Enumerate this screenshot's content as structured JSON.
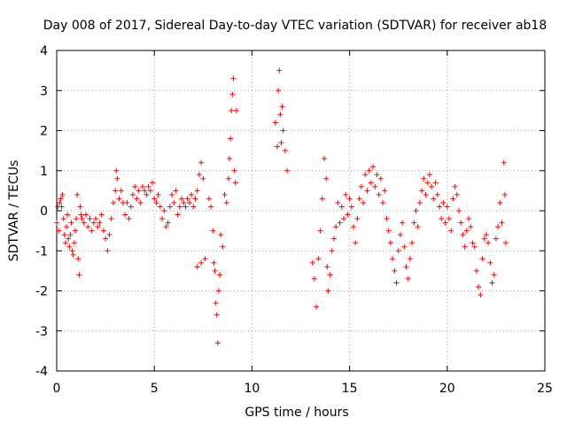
{
  "chart_data": {
    "type": "scatter",
    "title": "Day 008 of 2017, Sidereal Day-to-day VTEC variation (SDTVAR) for receiver ab18",
    "xlabel": "GPS time / hours",
    "ylabel": "SDTVAR / TECUs",
    "xlim": [
      0,
      25
    ],
    "ylim": [
      -4,
      4
    ],
    "x_ticks": [
      "0",
      "5",
      "10",
      "15",
      "20",
      "25"
    ],
    "y_ticks": [
      "-4",
      "-3",
      "-2",
      "-1",
      "0",
      "1",
      "2",
      "3",
      "4"
    ],
    "grid": true,
    "marker": "+",
    "series_color": "#ff0000",
    "series": [
      {
        "name": "ab18",
        "points": [
          [
            0.0,
            -0.3
          ],
          [
            0.05,
            0.1
          ],
          [
            0.1,
            -0.5
          ],
          [
            0.15,
            0.2
          ],
          [
            0.2,
            0.3
          ],
          [
            0.25,
            0.1
          ],
          [
            0.3,
            0.4
          ],
          [
            0.35,
            -0.2
          ],
          [
            0.4,
            -0.6
          ],
          [
            0.45,
            -0.8
          ],
          [
            0.5,
            -0.4
          ],
          [
            0.55,
            -0.1
          ],
          [
            0.6,
            -0.7
          ],
          [
            0.65,
            -0.9
          ],
          [
            0.7,
            -0.6
          ],
          [
            0.75,
            -0.3
          ],
          [
            0.8,
            -1.0
          ],
          [
            0.85,
            -1.1
          ],
          [
            0.9,
            -0.8
          ],
          [
            0.95,
            -0.5
          ],
          [
            1.0,
            -0.2
          ],
          [
            1.05,
            0.4
          ],
          [
            1.1,
            -1.2
          ],
          [
            1.15,
            -1.6
          ],
          [
            1.2,
            0.1
          ],
          [
            1.25,
            -0.1
          ],
          [
            1.3,
            -0.2
          ],
          [
            1.4,
            -0.3
          ],
          [
            1.5,
            -0.1
          ],
          [
            1.6,
            -0.4
          ],
          [
            1.7,
            -0.2
          ],
          [
            1.8,
            -0.5
          ],
          [
            1.9,
            -0.3
          ],
          [
            2.0,
            -0.2
          ],
          [
            2.1,
            -0.4
          ],
          [
            2.2,
            -0.3
          ],
          [
            2.3,
            -0.1
          ],
          [
            2.4,
            -0.5
          ],
          [
            2.5,
            -0.7
          ],
          [
            2.6,
            -1.0
          ],
          [
            2.7,
            -0.6
          ],
          [
            2.8,
            -0.2
          ],
          [
            2.9,
            0.2
          ],
          [
            3.0,
            0.5
          ],
          [
            3.05,
            1.0
          ],
          [
            3.1,
            0.8
          ],
          [
            3.2,
            0.3
          ],
          [
            3.3,
            0.5
          ],
          [
            3.4,
            0.2
          ],
          [
            3.5,
            -0.1
          ],
          [
            3.6,
            0.2
          ],
          [
            3.7,
            -0.2
          ],
          [
            3.8,
            0.1
          ],
          [
            3.9,
            0.4
          ],
          [
            4.0,
            0.6
          ],
          [
            4.1,
            0.3
          ],
          [
            4.2,
            0.5
          ],
          [
            4.3,
            0.2
          ],
          [
            4.4,
            0.6
          ],
          [
            4.5,
            0.5
          ],
          [
            4.6,
            0.4
          ],
          [
            4.7,
            0.6
          ],
          [
            4.8,
            0.5
          ],
          [
            4.9,
            0.7
          ],
          [
            5.0,
            0.3
          ],
          [
            5.1,
            0.2
          ],
          [
            5.2,
            0.4
          ],
          [
            5.3,
            0.1
          ],
          [
            5.4,
            -0.2
          ],
          [
            5.5,
            0.0
          ],
          [
            5.6,
            -0.4
          ],
          [
            5.7,
            -0.3
          ],
          [
            5.8,
            0.1
          ],
          [
            5.9,
            0.4
          ],
          [
            6.0,
            0.2
          ],
          [
            6.1,
            0.5
          ],
          [
            6.2,
            -0.1
          ],
          [
            6.3,
            0.1
          ],
          [
            6.4,
            0.3
          ],
          [
            6.5,
            0.2
          ],
          [
            6.6,
            0.1
          ],
          [
            6.7,
            0.3
          ],
          [
            6.8,
            0.2
          ],
          [
            6.9,
            0.4
          ],
          [
            7.0,
            0.1
          ],
          [
            7.1,
            0.3
          ],
          [
            7.2,
            0.5
          ],
          [
            7.3,
            0.9
          ],
          [
            7.4,
            1.2
          ],
          [
            7.5,
            0.8
          ],
          [
            7.2,
            -1.4
          ],
          [
            7.4,
            -1.3
          ],
          [
            7.6,
            -1.2
          ],
          [
            7.8,
            0.3
          ],
          [
            7.9,
            0.1
          ],
          [
            8.0,
            -0.5
          ],
          [
            8.05,
            -1.3
          ],
          [
            8.1,
            -1.5
          ],
          [
            8.15,
            -2.3
          ],
          [
            8.2,
            -2.6
          ],
          [
            8.25,
            -3.3
          ],
          [
            8.3,
            -2.0
          ],
          [
            8.35,
            -1.6
          ],
          [
            8.4,
            -0.6
          ],
          [
            8.5,
            -0.9
          ],
          [
            8.6,
            0.4
          ],
          [
            8.7,
            0.2
          ],
          [
            8.8,
            0.8
          ],
          [
            8.85,
            1.3
          ],
          [
            8.9,
            1.8
          ],
          [
            8.95,
            2.5
          ],
          [
            9.0,
            2.9
          ],
          [
            9.05,
            3.3
          ],
          [
            9.1,
            1.0
          ],
          [
            9.15,
            0.7
          ],
          [
            9.2,
            2.5
          ],
          [
            11.2,
            2.2
          ],
          [
            11.3,
            1.6
          ],
          [
            11.35,
            3.0
          ],
          [
            11.4,
            3.5
          ],
          [
            11.45,
            2.4
          ],
          [
            11.5,
            1.7
          ],
          [
            11.55,
            2.6
          ],
          [
            11.6,
            2.0
          ],
          [
            11.7,
            1.5
          ],
          [
            11.8,
            1.0
          ],
          [
            13.1,
            -1.3
          ],
          [
            13.2,
            -1.7
          ],
          [
            13.3,
            -2.4
          ],
          [
            13.4,
            -1.2
          ],
          [
            13.5,
            -0.5
          ],
          [
            13.6,
            0.3
          ],
          [
            13.7,
            1.3
          ],
          [
            13.8,
            0.8
          ],
          [
            13.85,
            -1.4
          ],
          [
            13.9,
            -2.0
          ],
          [
            14.0,
            -1.6
          ],
          [
            14.1,
            -1.0
          ],
          [
            14.2,
            -0.7
          ],
          [
            14.3,
            -0.4
          ],
          [
            14.4,
            0.2
          ],
          [
            14.5,
            -0.3
          ],
          [
            14.6,
            0.1
          ],
          [
            14.7,
            -0.2
          ],
          [
            14.8,
            0.4
          ],
          [
            14.9,
            -0.1
          ],
          [
            15.0,
            0.3
          ],
          [
            15.1,
            0.1
          ],
          [
            15.2,
            -0.4
          ],
          [
            15.3,
            -0.8
          ],
          [
            15.4,
            -0.2
          ],
          [
            15.5,
            0.3
          ],
          [
            15.6,
            0.6
          ],
          [
            15.7,
            0.2
          ],
          [
            15.8,
            0.9
          ],
          [
            15.9,
            0.5
          ],
          [
            16.0,
            1.0
          ],
          [
            16.1,
            0.7
          ],
          [
            16.2,
            1.1
          ],
          [
            16.3,
            0.6
          ],
          [
            16.4,
            0.9
          ],
          [
            16.5,
            0.4
          ],
          [
            16.6,
            0.8
          ],
          [
            16.7,
            0.2
          ],
          [
            16.8,
            0.5
          ],
          [
            16.9,
            -0.2
          ],
          [
            17.0,
            -0.5
          ],
          [
            17.1,
            -0.8
          ],
          [
            17.2,
            -1.2
          ],
          [
            17.3,
            -1.5
          ],
          [
            17.4,
            -1.8
          ],
          [
            17.5,
            -1.0
          ],
          [
            17.6,
            -0.6
          ],
          [
            17.7,
            -0.3
          ],
          [
            17.8,
            -0.9
          ],
          [
            17.9,
            -1.4
          ],
          [
            18.0,
            -1.7
          ],
          [
            18.1,
            -1.2
          ],
          [
            18.2,
            -0.8
          ],
          [
            18.3,
            -0.3
          ],
          [
            18.4,
            0.0
          ],
          [
            18.5,
            -0.4
          ],
          [
            18.6,
            0.2
          ],
          [
            18.7,
            0.5
          ],
          [
            18.8,
            0.8
          ],
          [
            18.9,
            0.4
          ],
          [
            19.0,
            0.7
          ],
          [
            19.1,
            0.9
          ],
          [
            19.2,
            0.6
          ],
          [
            19.3,
            0.3
          ],
          [
            19.4,
            0.7
          ],
          [
            19.5,
            0.4
          ],
          [
            19.6,
            0.1
          ],
          [
            19.7,
            -0.2
          ],
          [
            19.8,
            0.2
          ],
          [
            19.9,
            -0.3
          ],
          [
            20.0,
            0.1
          ],
          [
            20.1,
            -0.2
          ],
          [
            20.2,
            -0.5
          ],
          [
            20.3,
            0.3
          ],
          [
            20.4,
            0.6
          ],
          [
            20.5,
            0.4
          ],
          [
            20.6,
            0.0
          ],
          [
            20.7,
            -0.3
          ],
          [
            20.8,
            -0.6
          ],
          [
            20.9,
            -0.9
          ],
          [
            21.0,
            -0.5
          ],
          [
            21.1,
            -0.2
          ],
          [
            21.2,
            -0.4
          ],
          [
            21.3,
            -0.8
          ],
          [
            21.4,
            -0.9
          ],
          [
            21.5,
            -1.5
          ],
          [
            21.6,
            -1.9
          ],
          [
            21.7,
            -2.1
          ],
          [
            21.8,
            -1.2
          ],
          [
            21.9,
            -0.7
          ],
          [
            22.0,
            -0.6
          ],
          [
            22.1,
            -0.8
          ],
          [
            22.2,
            -1.3
          ],
          [
            22.3,
            -1.8
          ],
          [
            22.4,
            -1.6
          ],
          [
            22.5,
            -0.7
          ],
          [
            22.6,
            -0.4
          ],
          [
            22.7,
            0.2
          ],
          [
            22.8,
            -0.3
          ],
          [
            22.9,
            1.2
          ],
          [
            22.95,
            0.4
          ],
          [
            23.0,
            -0.8
          ]
        ]
      }
    ]
  }
}
